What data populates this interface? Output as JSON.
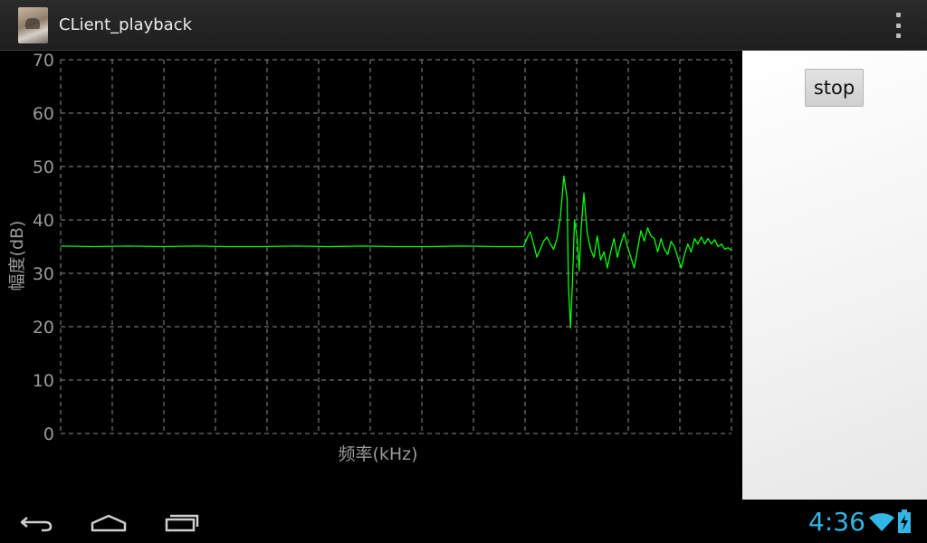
{
  "app": {
    "title": "CLient_playback",
    "icon": "app-photo-icon"
  },
  "actionbar": {
    "overflow_icon": "overflow-menu-icon"
  },
  "controls": {
    "stop_label": "stop"
  },
  "status": {
    "time": "4:36",
    "wifi_icon": "wifi-icon",
    "battery_icon": "battery-charging-icon"
  },
  "navigation": {
    "back_icon": "back-icon",
    "home_icon": "home-icon",
    "recents_icon": "recents-icon"
  },
  "colors": {
    "trace": "#00ff00",
    "accent": "#33b5e5",
    "grid": "#8c8c8c",
    "background": "#000000"
  },
  "chart_data": {
    "type": "line",
    "title": "",
    "xlabel": "频率(kHz)",
    "ylabel": "幅度(dB)",
    "ylim": [
      0,
      70
    ],
    "yticks": [
      "0",
      "10",
      "20",
      "30",
      "40",
      "50",
      "60",
      "70"
    ],
    "xlim": [
      0,
      1
    ],
    "grid": true,
    "legend": "none",
    "series": [
      {
        "values": [
          [
            0.0,
            35.1
          ],
          [
            0.05,
            35.0
          ],
          [
            0.1,
            35.1
          ],
          [
            0.15,
            35.0
          ],
          [
            0.2,
            35.1
          ],
          [
            0.25,
            35.0
          ],
          [
            0.3,
            35.0
          ],
          [
            0.35,
            35.1
          ],
          [
            0.4,
            35.0
          ],
          [
            0.45,
            35.1
          ],
          [
            0.5,
            35.0
          ],
          [
            0.55,
            35.0
          ],
          [
            0.6,
            35.1
          ],
          [
            0.65,
            35.0
          ],
          [
            0.69,
            35.0
          ],
          [
            0.695,
            36.5
          ],
          [
            0.7,
            37.8
          ],
          [
            0.705,
            35.5
          ],
          [
            0.71,
            33.0
          ],
          [
            0.715,
            34.5
          ],
          [
            0.72,
            36.0
          ],
          [
            0.725,
            36.8
          ],
          [
            0.73,
            35.5
          ],
          [
            0.735,
            34.5
          ],
          [
            0.74,
            36.5
          ],
          [
            0.745,
            40.5
          ],
          [
            0.75,
            48.2
          ],
          [
            0.755,
            44.0
          ],
          [
            0.757,
            28.0
          ],
          [
            0.76,
            19.8
          ],
          [
            0.763,
            28.5
          ],
          [
            0.766,
            40.0
          ],
          [
            0.77,
            36.5
          ],
          [
            0.773,
            30.5
          ],
          [
            0.776,
            38.5
          ],
          [
            0.78,
            45.0
          ],
          [
            0.785,
            37.5
          ],
          [
            0.79,
            34.5
          ],
          [
            0.795,
            33.0
          ],
          [
            0.8,
            37.0
          ],
          [
            0.805,
            32.5
          ],
          [
            0.81,
            34.0
          ],
          [
            0.815,
            31.0
          ],
          [
            0.82,
            34.0
          ],
          [
            0.825,
            36.5
          ],
          [
            0.83,
            33.0
          ],
          [
            0.835,
            35.5
          ],
          [
            0.84,
            37.5
          ],
          [
            0.845,
            35.0
          ],
          [
            0.85,
            33.0
          ],
          [
            0.855,
            31.0
          ],
          [
            0.86,
            34.5
          ],
          [
            0.865,
            38.0
          ],
          [
            0.87,
            36.0
          ],
          [
            0.875,
            38.5
          ],
          [
            0.88,
            37.0
          ],
          [
            0.885,
            36.5
          ],
          [
            0.89,
            34.0
          ],
          [
            0.895,
            36.5
          ],
          [
            0.9,
            34.5
          ],
          [
            0.905,
            33.5
          ],
          [
            0.91,
            36.0
          ],
          [
            0.915,
            35.0
          ],
          [
            0.92,
            33.0
          ],
          [
            0.925,
            31.0
          ],
          [
            0.93,
            33.5
          ],
          [
            0.935,
            35.5
          ],
          [
            0.94,
            34.0
          ],
          [
            0.945,
            36.5
          ],
          [
            0.95,
            35.5
          ],
          [
            0.955,
            36.8
          ],
          [
            0.96,
            35.5
          ],
          [
            0.965,
            36.5
          ],
          [
            0.97,
            35.5
          ],
          [
            0.975,
            36.3
          ],
          [
            0.98,
            35.0
          ],
          [
            0.985,
            35.5
          ],
          [
            0.99,
            34.5
          ],
          [
            0.995,
            34.8
          ],
          [
            1.0,
            34.3
          ]
        ]
      }
    ]
  }
}
